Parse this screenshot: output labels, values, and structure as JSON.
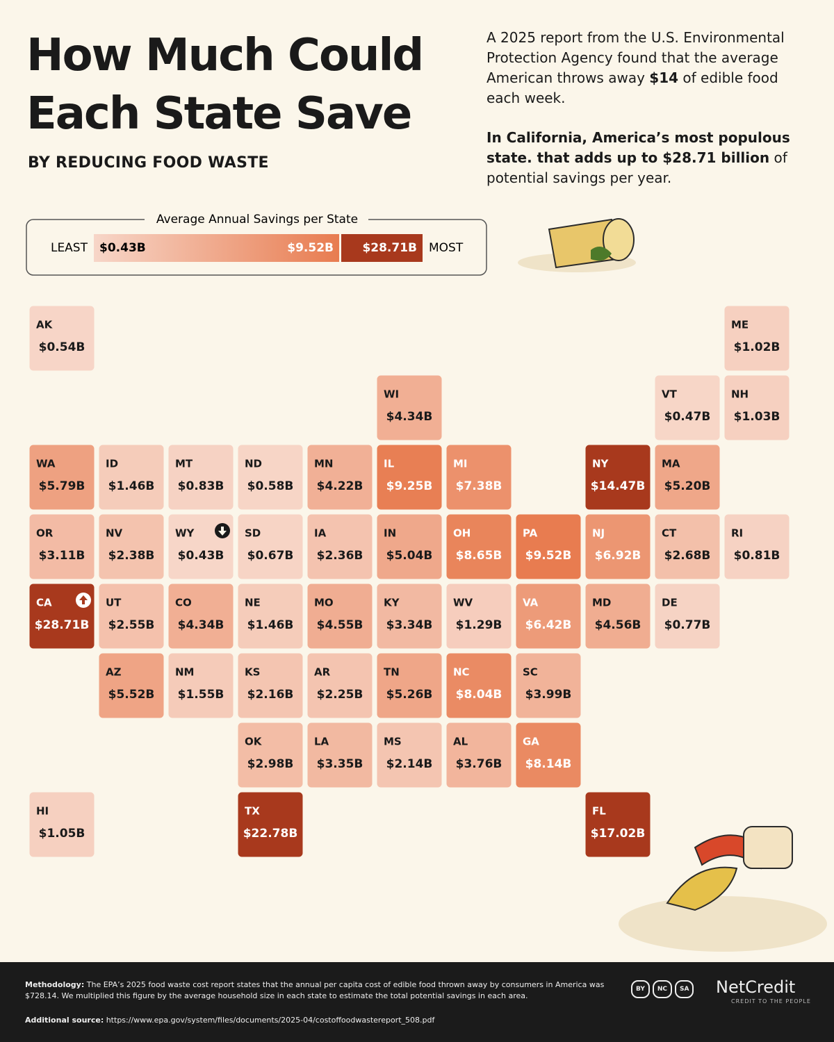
{
  "header": {
    "title_lines": [
      "How Much Could",
      "Each State Save"
    ],
    "subtitle": "BY REDUCING FOOD WASTE"
  },
  "intro": [
    [
      {
        "text": "A 2025 report from the U.S. Environmental Protection Agency found that the average American throws away ",
        "bold": false
      },
      {
        "text": "$14",
        "bold": true
      },
      {
        "text": " of edible food each week.",
        "bold": false
      }
    ],
    [
      {
        "text": "In California, America’s most populous state. that adds up to ",
        "bold": true,
        "_": null
      },
      {
        "text": "$28.71 billion",
        "bold": true
      },
      {
        "text": " of potential savings per year.",
        "bold": false
      }
    ]
  ],
  "legend": {
    "title": "Average Annual Savings per State",
    "least": "LEAST",
    "most": "MOST",
    "min": {
      "value": 0.43,
      "label": "$0.43B"
    },
    "mid": {
      "value": 9.52,
      "label": "$9.52B"
    },
    "max": {
      "value": 28.71,
      "label": "$28.71B"
    }
  },
  "states": [
    {
      "abbr": "AK",
      "value": {
        "value": 0.54,
        "label": "$0.54B"
      }
    },
    {
      "abbr": "ME",
      "value": {
        "value": 1.02,
        "label": "$1.02B"
      }
    },
    {
      "abbr": "WI",
      "value": {
        "value": 4.34,
        "label": "$4.34B"
      }
    },
    {
      "abbr": "VT",
      "value": {
        "value": 0.47,
        "label": "$0.47B"
      }
    },
    {
      "abbr": "NH",
      "value": {
        "value": 1.03,
        "label": "$1.03B"
      }
    },
    {
      "abbr": "WA",
      "value": {
        "value": 5.79,
        "label": "$5.79B"
      }
    },
    {
      "abbr": "ID",
      "value": {
        "value": 1.46,
        "label": "$1.46B"
      }
    },
    {
      "abbr": "MT",
      "value": {
        "value": 0.83,
        "label": "$0.83B"
      }
    },
    {
      "abbr": "ND",
      "value": {
        "value": 0.58,
        "label": "$0.58B"
      }
    },
    {
      "abbr": "MN",
      "value": {
        "value": 4.22,
        "label": "$4.22B"
      }
    },
    {
      "abbr": "IL",
      "value": {
        "value": 9.25,
        "label": "$9.25B"
      }
    },
    {
      "abbr": "MI",
      "value": {
        "value": 7.38,
        "label": "$7.38B"
      }
    },
    {
      "abbr": "NY",
      "value": {
        "value": 14.47,
        "label": "$14.47B"
      }
    },
    {
      "abbr": "MA",
      "value": {
        "value": 5.2,
        "label": "$5.20B"
      }
    },
    {
      "abbr": "OR",
      "value": {
        "value": 3.11,
        "label": "$3.11B"
      }
    },
    {
      "abbr": "NV",
      "value": {
        "value": 2.38,
        "label": "$2.38B"
      }
    },
    {
      "abbr": "WY",
      "value": {
        "value": 0.43,
        "label": "$0.43B"
      }
    },
    {
      "abbr": "SD",
      "value": {
        "value": 0.67,
        "label": "$0.67B"
      }
    },
    {
      "abbr": "IA",
      "value": {
        "value": 2.36,
        "label": "$2.36B"
      }
    },
    {
      "abbr": "IN",
      "value": {
        "value": 5.04,
        "label": "$5.04B"
      }
    },
    {
      "abbr": "OH",
      "value": {
        "value": 8.65,
        "label": "$8.65B"
      }
    },
    {
      "abbr": "PA",
      "value": {
        "value": 9.52,
        "label": "$9.52B"
      }
    },
    {
      "abbr": "NJ",
      "value": {
        "value": 6.92,
        "label": "$6.92B"
      }
    },
    {
      "abbr": "CT",
      "value": {
        "value": 2.68,
        "label": "$2.68B"
      }
    },
    {
      "abbr": "RI",
      "value": {
        "value": 0.81,
        "label": "$0.81B"
      }
    },
    {
      "abbr": "CA",
      "value": {
        "value": 28.71,
        "label": "$28.71B"
      }
    },
    {
      "abbr": "UT",
      "value": {
        "value": 2.55,
        "label": "$2.55B"
      }
    },
    {
      "abbr": "CO",
      "value": {
        "value": 4.34,
        "label": "$4.34B"
      }
    },
    {
      "abbr": "NE",
      "value": {
        "value": 1.46,
        "label": "$1.46B"
      }
    },
    {
      "abbr": "MO",
      "value": {
        "value": 4.55,
        "label": "$4.55B"
      }
    },
    {
      "abbr": "KY",
      "value": {
        "value": 3.34,
        "label": "$3.34B"
      }
    },
    {
      "abbr": "WV",
      "value": {
        "value": 1.29,
        "label": "$1.29B"
      }
    },
    {
      "abbr": "VA",
      "value": {
        "value": 6.42,
        "label": "$6.42B"
      }
    },
    {
      "abbr": "MD",
      "value": {
        "value": 4.56,
        "label": "$4.56B"
      }
    },
    {
      "abbr": "DE",
      "value": {
        "value": 0.77,
        "label": "$0.77B"
      }
    },
    {
      "abbr": "AZ",
      "value": {
        "value": 5.52,
        "label": "$5.52B"
      }
    },
    {
      "abbr": "NM",
      "value": {
        "value": 1.55,
        "label": "$1.55B"
      }
    },
    {
      "abbr": "KS",
      "value": {
        "value": 2.16,
        "label": "$2.16B"
      }
    },
    {
      "abbr": "AR",
      "value": {
        "value": 2.25,
        "label": "$2.25B"
      }
    },
    {
      "abbr": "TN",
      "value": {
        "value": 5.26,
        "label": "$5.26B"
      }
    },
    {
      "abbr": "NC",
      "value": {
        "value": 8.04,
        "label": "$8.04B"
      }
    },
    {
      "abbr": "SC",
      "value": {
        "value": 3.99,
        "label": "$3.99B"
      }
    },
    {
      "abbr": "OK",
      "value": {
        "value": 2.98,
        "label": "$2.98B"
      }
    },
    {
      "abbr": "LA",
      "value": {
        "value": 3.35,
        "label": "$3.35B"
      }
    },
    {
      "abbr": "MS",
      "value": {
        "value": 2.14,
        "label": "$2.14B"
      }
    },
    {
      "abbr": "AL",
      "value": {
        "value": 3.76,
        "label": "$3.76B"
      }
    },
    {
      "abbr": "GA",
      "value": {
        "value": 8.14,
        "label": "$8.14B"
      }
    },
    {
      "abbr": "HI",
      "value": {
        "value": 1.05,
        "label": "$1.05B"
      }
    },
    {
      "abbr": "TX",
      "value": {
        "value": 22.78,
        "label": "$22.78B"
      }
    },
    {
      "abbr": "FL",
      "value": {
        "value": 17.02,
        "label": "$17.02B"
      }
    }
  ],
  "footer": {
    "methodology": {
      "label": "Methodology:",
      "text": " The EPA’s 2025 food waste cost report states that the annual per capita cost of edible food thrown away by consumers in America was $728.14. We multiplied this figure by the average household size in each state to estimate the total potential savings in each area."
    },
    "source": {
      "label": "Additional source:",
      "url": " https://www.epa.gov/system/files/documents/2025-04/costoffoodwastereport_508.pdf"
    },
    "license": [
      "BY",
      "NC",
      "SA"
    ],
    "brand": "NetCredit",
    "tagline": "CREDIT TO THE PEOPLE"
  }
}
